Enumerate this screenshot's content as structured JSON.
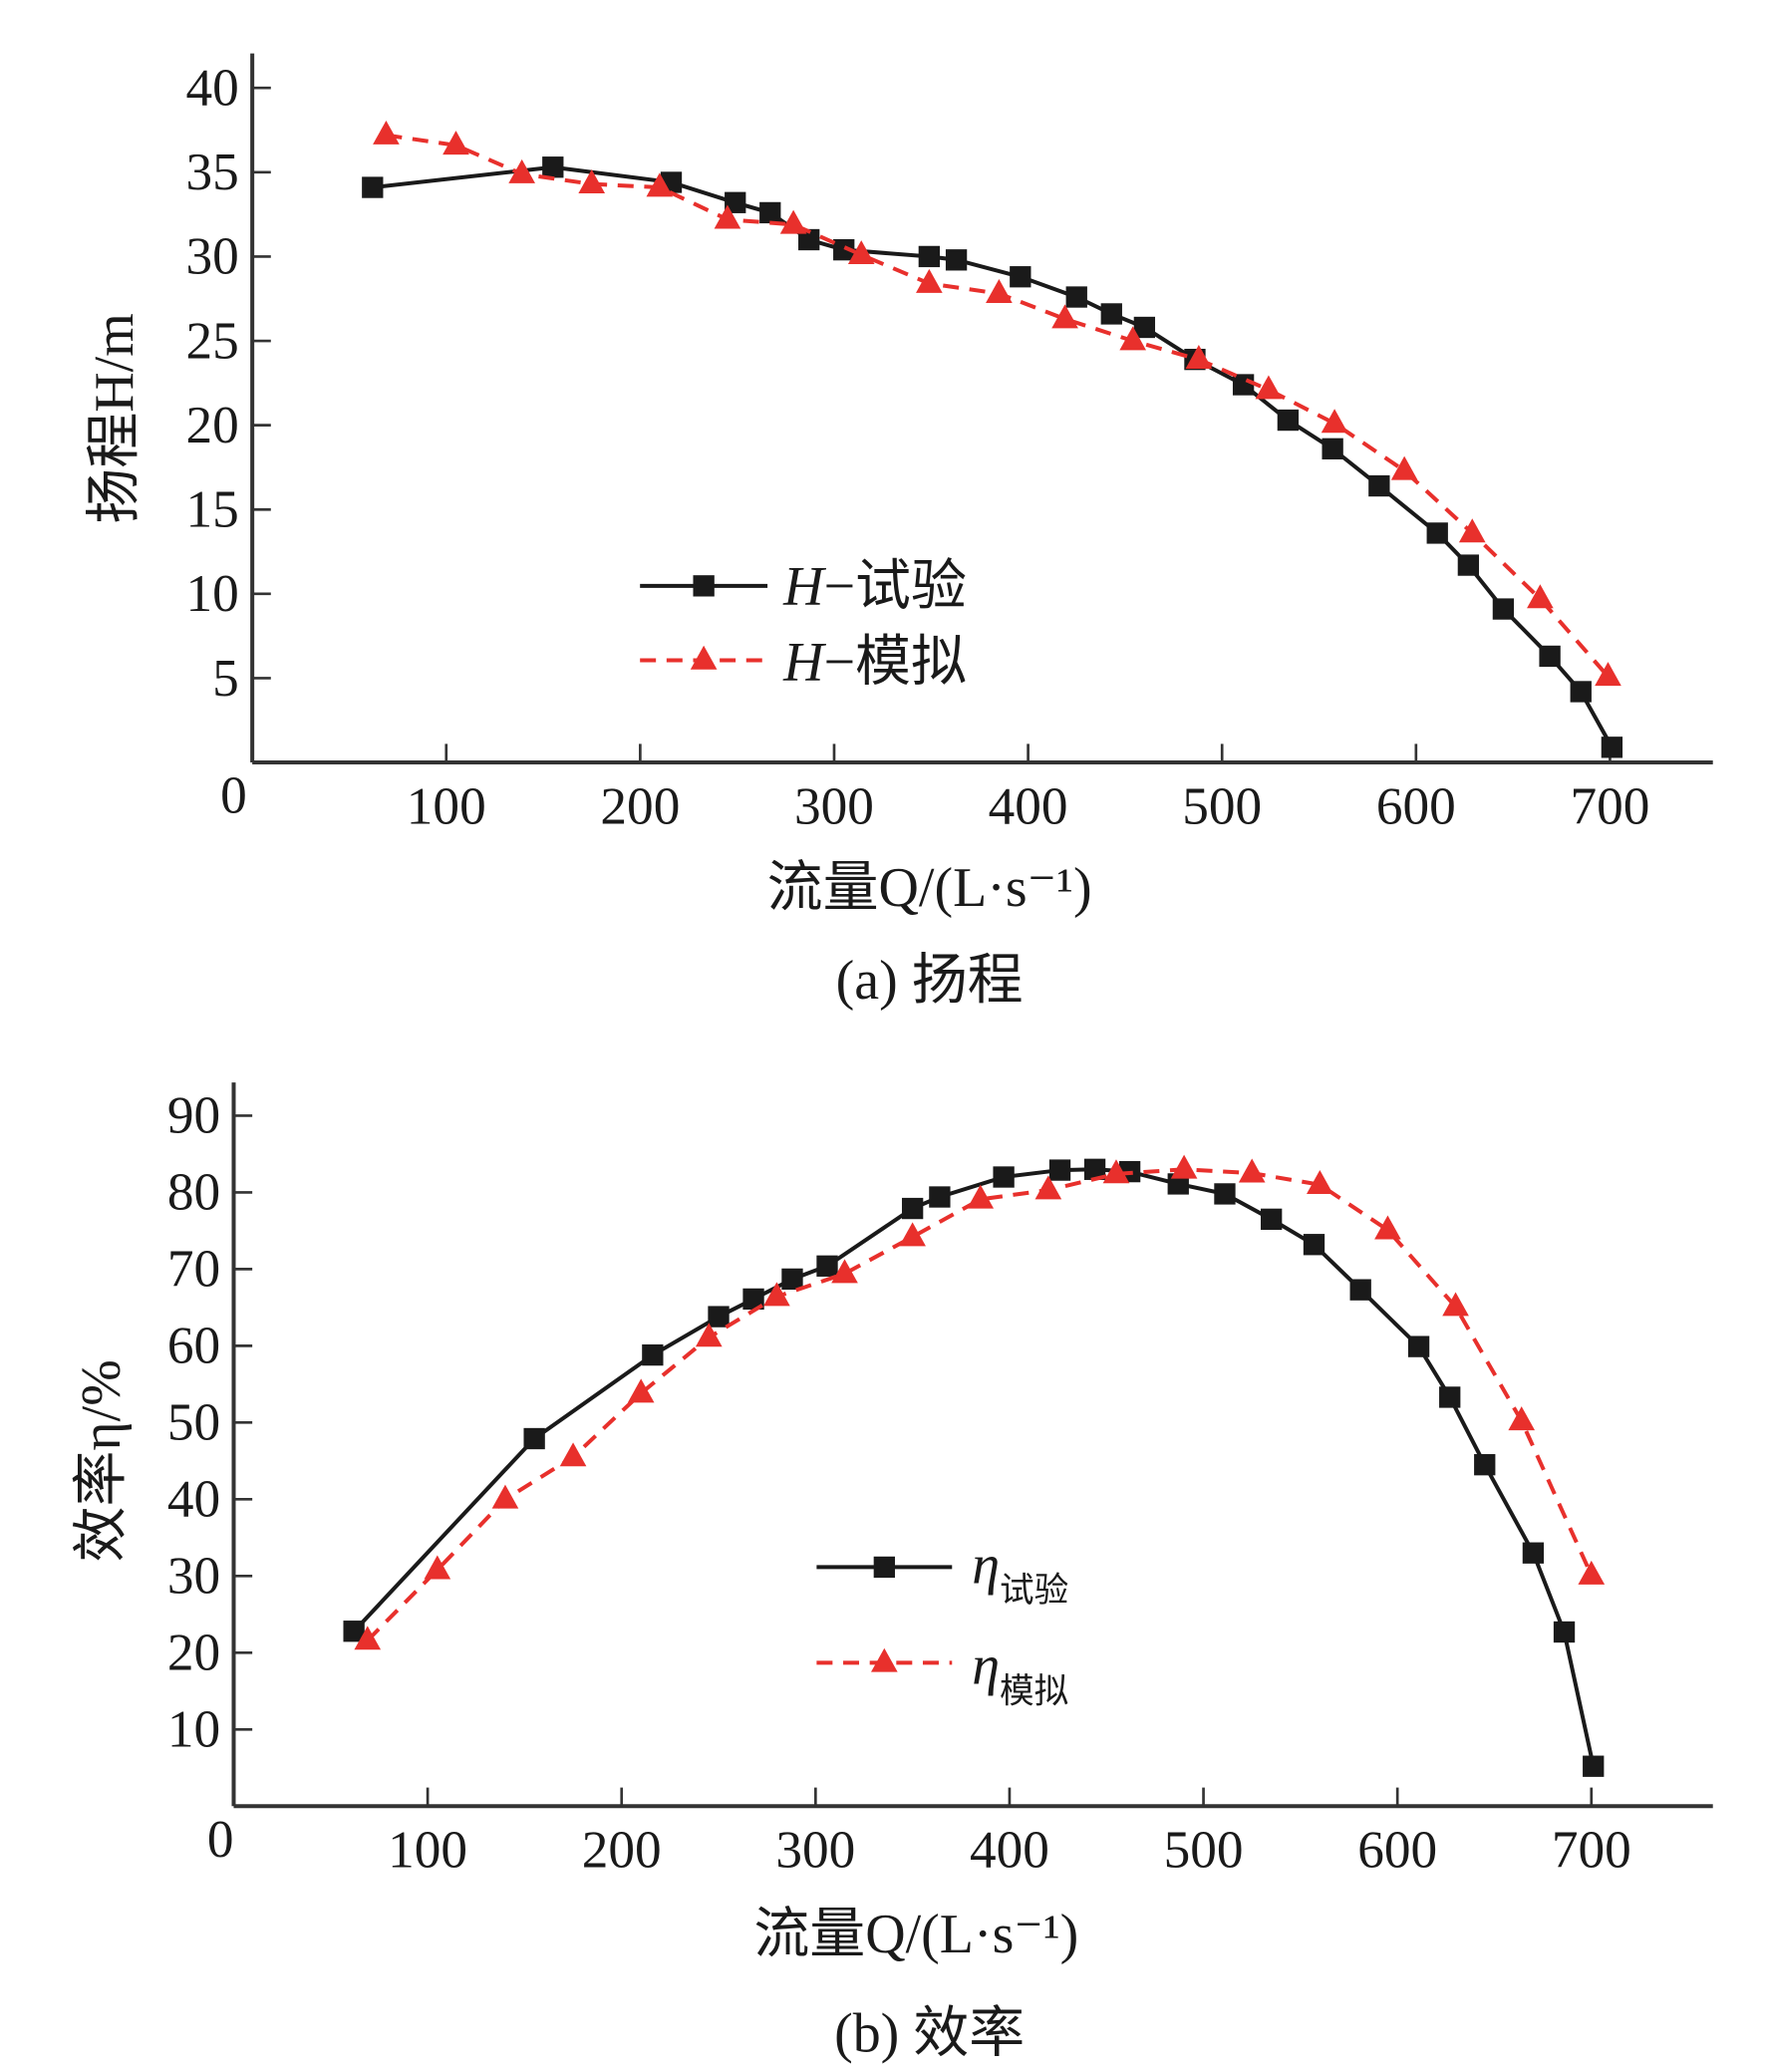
{
  "chart_data": [
    {
      "type": "line",
      "title": "(a) 扬程",
      "xlabel": "流量Q/(L·s⁻¹)",
      "ylabel": "扬程H/m",
      "xlim": [
        0,
        750
      ],
      "ylim": [
        0,
        42
      ],
      "xticks": [
        100,
        200,
        300,
        400,
        500,
        600,
        700
      ],
      "yticks": [
        5,
        10,
        15,
        20,
        25,
        30,
        35,
        40
      ],
      "origin_label": "0",
      "grid": false,
      "legend_position": "center-left",
      "series": [
        {
          "name": "H−试验",
          "legend_symbol": "H",
          "legend_text": "−试验",
          "color": "#1a1a1a",
          "marker": "square",
          "dash": "solid",
          "x": [
            62,
            155,
            216,
            249,
            267,
            287,
            305,
            349,
            363,
            396,
            425,
            443,
            460,
            486,
            511,
            534,
            557,
            581,
            611,
            627,
            645,
            669,
            685,
            701
          ],
          "y": [
            34.1,
            35.3,
            34.4,
            33.2,
            32.6,
            31.0,
            30.4,
            30.0,
            29.8,
            28.8,
            27.6,
            26.6,
            25.8,
            23.9,
            22.4,
            20.3,
            18.6,
            16.4,
            13.6,
            11.7,
            9.1,
            6.3,
            4.2,
            0.9
          ]
        },
        {
          "name": "H−模拟",
          "legend_symbol": "H",
          "legend_text": "−模拟",
          "color": "#e8302c",
          "marker": "triangle",
          "dash": "dashed",
          "x": [
            69,
            105,
            139,
            175,
            210,
            245,
            279,
            314,
            349,
            385,
            419,
            454,
            488,
            524,
            558,
            594,
            629,
            664,
            699
          ],
          "y": [
            37.2,
            36.6,
            34.9,
            34.3,
            34.1,
            32.2,
            31.9,
            30.1,
            28.4,
            27.8,
            26.3,
            25.0,
            23.9,
            22.1,
            20.1,
            17.3,
            13.6,
            9.7,
            5.1
          ]
        }
      ]
    },
    {
      "type": "line",
      "title": "(b) 效率",
      "xlabel": "流量Q/(L·s⁻¹)",
      "ylabel": "效率η/%",
      "xlim": [
        0,
        760
      ],
      "ylim": [
        0,
        94
      ],
      "xticks": [
        100,
        200,
        300,
        400,
        500,
        600,
        700
      ],
      "yticks": [
        10,
        20,
        30,
        40,
        50,
        60,
        70,
        80,
        90
      ],
      "origin_label": "0",
      "grid": false,
      "legend_position": "center",
      "series": [
        {
          "name": "η试验",
          "legend_symbol": "η",
          "legend_text": "试验",
          "color": "#1a1a1a",
          "marker": "square",
          "dash": "solid",
          "x": [
            62,
            155,
            216,
            250,
            268,
            288,
            306,
            350,
            364,
            397,
            426,
            444,
            462,
            487,
            511,
            535,
            557,
            581,
            611,
            627,
            645,
            670,
            686,
            701
          ],
          "y": [
            22.8,
            47.9,
            58.8,
            63.8,
            66.1,
            68.7,
            70.4,
            77.9,
            79.4,
            82.0,
            82.9,
            83.0,
            82.7,
            81.1,
            79.8,
            76.5,
            73.2,
            67.3,
            59.9,
            53.3,
            44.5,
            33.0,
            22.7,
            5.2
          ]
        },
        {
          "name": "η模拟",
          "legend_symbol": "η",
          "legend_text": "模拟",
          "color": "#e8302c",
          "marker": "triangle",
          "dash": "dashed",
          "x": [
            69,
            105,
            140,
            175,
            210,
            245,
            280,
            315,
            350,
            385,
            420,
            455,
            490,
            525,
            560,
            595,
            630,
            664,
            700
          ],
          "y": [
            21.6,
            30.8,
            40.0,
            45.5,
            53.8,
            61.1,
            66.4,
            69.4,
            74.2,
            79.1,
            80.3,
            82.4,
            83.0,
            82.5,
            81.0,
            75.1,
            65.1,
            50.2,
            30.1
          ]
        }
      ]
    }
  ]
}
